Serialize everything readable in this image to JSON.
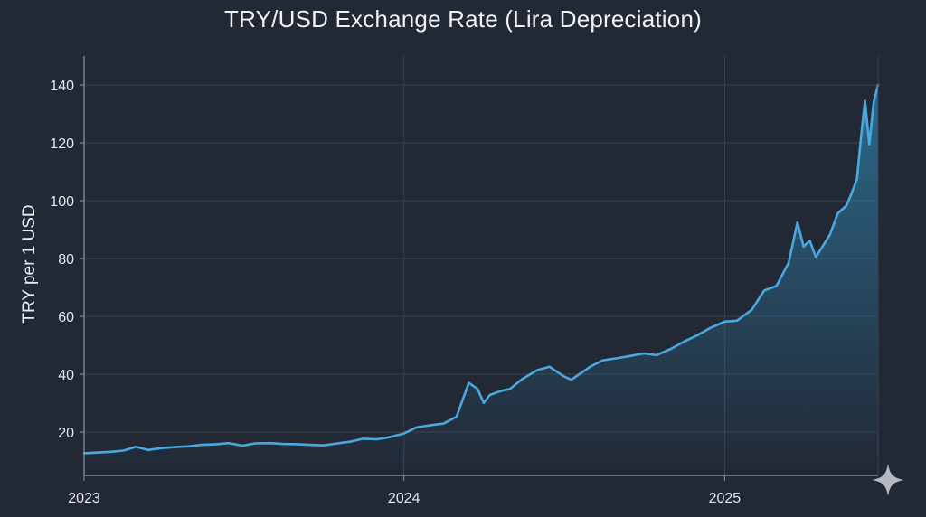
{
  "chart_data": {
    "type": "area",
    "title": "TRY/USD Exchange Rate (Lira Depreciation)",
    "xlabel": "",
    "ylabel": "TRY per 1 USD",
    "x_type": "date",
    "xlim": [
      "2023-01-01",
      "2025-06-25"
    ],
    "ylim": [
      5,
      150
    ],
    "x_ticks": [
      {
        "value": "2023-01-01",
        "label": "2023"
      },
      {
        "value": "2024-01-01",
        "label": "2024"
      },
      {
        "value": "2025-01-01",
        "label": "2025"
      }
    ],
    "y_ticks": [
      20,
      40,
      60,
      80,
      100,
      120,
      140
    ],
    "grid": true,
    "legend": "none",
    "colors": {
      "background": "#222834",
      "line": "#4aa8e0",
      "fill": "#2c6e93",
      "grid": "#3a4252",
      "axis": "#8e96a3"
    },
    "series": [
      {
        "x": [
          "2023-01-01",
          "2023-01-15",
          "2023-02-01",
          "2023-02-15",
          "2023-03-01",
          "2023-03-15",
          "2023-04-01",
          "2023-04-15",
          "2023-05-01",
          "2023-05-15",
          "2023-06-01",
          "2023-06-15",
          "2023-07-01",
          "2023-07-15",
          "2023-08-01",
          "2023-08-15",
          "2023-09-01",
          "2023-09-15",
          "2023-10-01",
          "2023-10-15",
          "2023-11-01",
          "2023-11-15",
          "2023-12-01",
          "2023-12-15",
          "2024-01-01",
          "2024-01-15",
          "2024-02-01",
          "2024-02-15",
          "2024-03-01",
          "2024-03-15",
          "2024-03-25",
          "2024-04-01",
          "2024-04-08",
          "2024-04-15",
          "2024-04-22",
          "2024-05-01",
          "2024-05-15",
          "2024-06-01",
          "2024-06-15",
          "2024-07-01",
          "2024-07-10",
          "2024-07-20",
          "2024-08-01",
          "2024-08-15",
          "2024-09-01",
          "2024-09-15",
          "2024-10-01",
          "2024-10-15",
          "2024-11-01",
          "2024-11-15",
          "2024-12-01",
          "2024-12-15",
          "2025-01-01",
          "2025-01-15",
          "2025-02-01",
          "2025-02-15",
          "2025-03-01",
          "2025-03-15",
          "2025-03-25",
          "2025-04-01",
          "2025-04-08",
          "2025-04-15",
          "2025-04-25",
          "2025-05-01",
          "2025-05-10",
          "2025-05-20",
          "2025-05-25",
          "2025-06-01",
          "2025-06-05",
          "2025-06-10",
          "2025-06-15",
          "2025-06-20",
          "2025-06-25"
        ],
        "values": [
          12.7,
          12.9,
          13.2,
          13.6,
          14.9,
          13.8,
          14.5,
          14.8,
          15.1,
          15.6,
          15.8,
          16.2,
          15.3,
          16.1,
          16.2,
          15.9,
          15.8,
          15.6,
          15.4,
          16.0,
          16.7,
          17.7,
          17.5,
          18.2,
          19.5,
          21.6,
          22.4,
          22.9,
          25.3,
          37.0,
          34.9,
          30.1,
          32.8,
          33.6,
          34.3,
          34.9,
          38.3,
          41.4,
          42.6,
          39.3,
          38.1,
          40.2,
          42.7,
          44.8,
          45.6,
          46.3,
          47.2,
          46.6,
          48.8,
          51.2,
          53.5,
          55.9,
          58.2,
          58.5,
          62.3,
          68.9,
          70.5,
          78.6,
          92.5,
          84.1,
          86.2,
          80.5,
          85.3,
          88.2,
          95.6,
          98.3,
          102.0,
          107.5,
          120.3,
          134.6,
          119.5,
          134.2,
          140.0
        ]
      }
    ]
  }
}
